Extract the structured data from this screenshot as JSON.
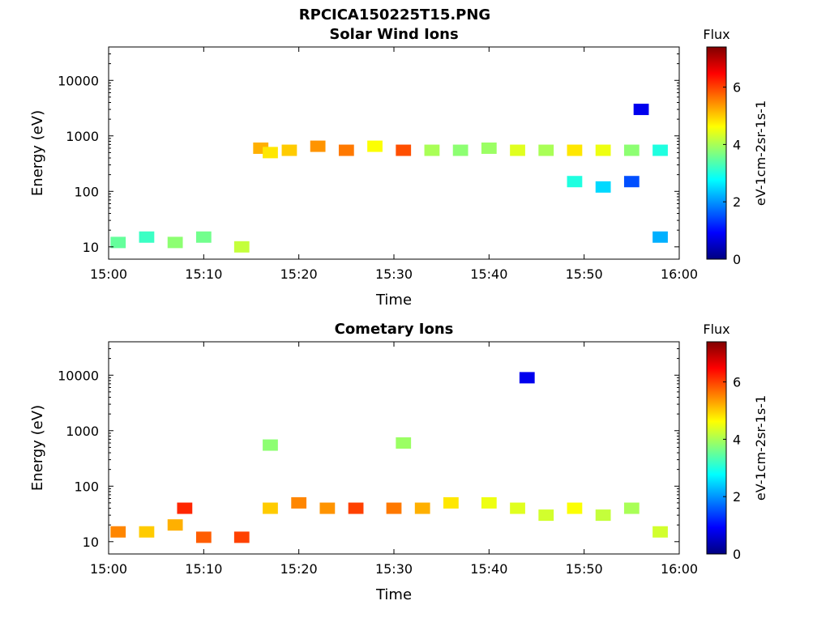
{
  "figure_title": "RPCICA150225T15.PNG",
  "chart_data": [
    {
      "type": "heatmap",
      "title": "Solar Wind Ions",
      "xlabel": "Time",
      "ylabel": "Energy (eV)",
      "y_scale": "log",
      "xlim": [
        "15:00",
        "16:00"
      ],
      "ylim": [
        6,
        40000
      ],
      "x_ticks": [
        "15:00",
        "15:10",
        "15:20",
        "15:30",
        "15:40",
        "15:50",
        "16:00"
      ],
      "y_ticks": [
        "10",
        "100",
        "1000",
        "10000"
      ],
      "colorbar": {
        "label": "Flux",
        "unit": "eV-1cm-2sr-1s-1",
        "range": [
          0,
          7.4
        ],
        "ticks": [
          "0",
          "2",
          "4",
          "6"
        ]
      },
      "cells": [
        {
          "t": "15:01",
          "e": 12,
          "flux": 3.5
        },
        {
          "t": "15:04",
          "e": 15,
          "flux": 3.2
        },
        {
          "t": "15:07",
          "e": 12,
          "flux": 3.8
        },
        {
          "t": "15:10",
          "e": 15,
          "flux": 3.6
        },
        {
          "t": "15:14",
          "e": 10,
          "flux": 4.2
        },
        {
          "t": "15:16",
          "e": 600,
          "flux": 5.2
        },
        {
          "t": "15:17",
          "e": 500,
          "flux": 4.8
        },
        {
          "t": "15:19",
          "e": 550,
          "flux": 5.0
        },
        {
          "t": "15:22",
          "e": 650,
          "flux": 5.4
        },
        {
          "t": "15:25",
          "e": 550,
          "flux": 5.6
        },
        {
          "t": "15:28",
          "e": 650,
          "flux": 4.6
        },
        {
          "t": "15:31",
          "e": 550,
          "flux": 5.9
        },
        {
          "t": "15:34",
          "e": 550,
          "flux": 4.0
        },
        {
          "t": "15:37",
          "e": 550,
          "flux": 3.8
        },
        {
          "t": "15:40",
          "e": 600,
          "flux": 3.9
        },
        {
          "t": "15:43",
          "e": 550,
          "flux": 4.4
        },
        {
          "t": "15:46",
          "e": 550,
          "flux": 4.0
        },
        {
          "t": "15:49",
          "e": 550,
          "flux": 4.8
        },
        {
          "t": "15:52",
          "e": 550,
          "flux": 4.5
        },
        {
          "t": "15:55",
          "e": 550,
          "flux": 3.8
        },
        {
          "t": "15:58",
          "e": 550,
          "flux": 3.0
        },
        {
          "t": "15:49",
          "e": 150,
          "flux": 3.0
        },
        {
          "t": "15:52",
          "e": 120,
          "flux": 2.5
        },
        {
          "t": "15:55",
          "e": 150,
          "flux": 1.5
        },
        {
          "t": "15:58",
          "e": 15,
          "flux": 2.2
        },
        {
          "t": "15:56",
          "e": 3000,
          "flux": 0.8
        }
      ]
    },
    {
      "type": "heatmap",
      "title": "Cometary Ions",
      "xlabel": "Time",
      "ylabel": "Energy (eV)",
      "y_scale": "log",
      "xlim": [
        "15:00",
        "16:00"
      ],
      "ylim": [
        6,
        40000
      ],
      "x_ticks": [
        "15:00",
        "15:10",
        "15:20",
        "15:30",
        "15:40",
        "15:50",
        "16:00"
      ],
      "y_ticks": [
        "10",
        "100",
        "1000",
        "10000"
      ],
      "colorbar": {
        "label": "Flux",
        "unit": "eV-1cm-2sr-1s-1",
        "range": [
          0,
          7.4
        ],
        "ticks": [
          "0",
          "2",
          "4",
          "6"
        ]
      },
      "cells": [
        {
          "t": "15:01",
          "e": 15,
          "flux": 5.5
        },
        {
          "t": "15:04",
          "e": 15,
          "flux": 5.0
        },
        {
          "t": "15:07",
          "e": 20,
          "flux": 5.2
        },
        {
          "t": "15:08",
          "e": 40,
          "flux": 6.2
        },
        {
          "t": "15:10",
          "e": 12,
          "flux": 5.8
        },
        {
          "t": "15:14",
          "e": 12,
          "flux": 6.0
        },
        {
          "t": "15:17",
          "e": 40,
          "flux": 5.0
        },
        {
          "t": "15:20",
          "e": 50,
          "flux": 5.5
        },
        {
          "t": "15:23",
          "e": 40,
          "flux": 5.4
        },
        {
          "t": "15:26",
          "e": 40,
          "flux": 6.0
        },
        {
          "t": "15:30",
          "e": 40,
          "flux": 5.6
        },
        {
          "t": "15:33",
          "e": 40,
          "flux": 5.2
        },
        {
          "t": "15:36",
          "e": 50,
          "flux": 4.8
        },
        {
          "t": "15:40",
          "e": 50,
          "flux": 4.5
        },
        {
          "t": "15:43",
          "e": 40,
          "flux": 4.4
        },
        {
          "t": "15:46",
          "e": 30,
          "flux": 4.3
        },
        {
          "t": "15:49",
          "e": 40,
          "flux": 4.6
        },
        {
          "t": "15:52",
          "e": 30,
          "flux": 4.2
        },
        {
          "t": "15:55",
          "e": 40,
          "flux": 4.0
        },
        {
          "t": "15:58",
          "e": 15,
          "flux": 4.3
        },
        {
          "t": "15:17",
          "e": 550,
          "flux": 3.8
        },
        {
          "t": "15:31",
          "e": 600,
          "flux": 3.9
        },
        {
          "t": "15:44",
          "e": 9000,
          "flux": 0.8
        }
      ]
    }
  ]
}
